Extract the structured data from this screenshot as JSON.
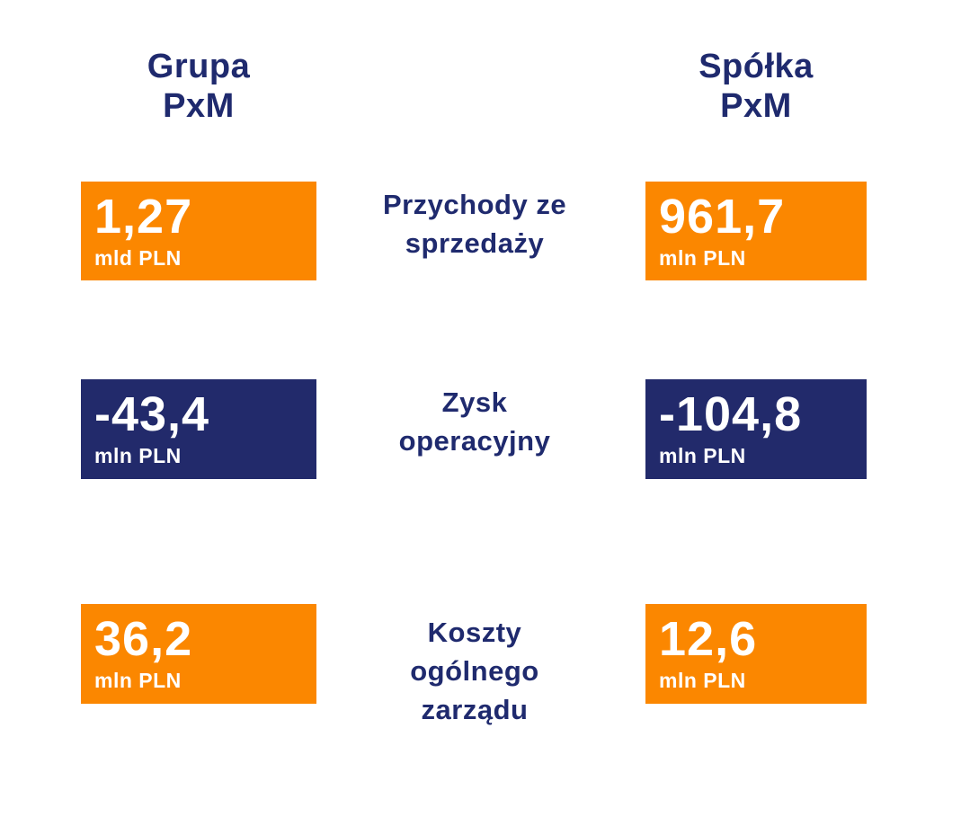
{
  "colors": {
    "orange_tile": "#FB8700",
    "navy_tile": "#222A6B",
    "heading_text": "#1F2A6E",
    "tile_text": "#FFFFFF",
    "background": "#FFFFFF"
  },
  "headers": [
    {
      "id": "grupa-pxm",
      "lines": [
        "Grupa",
        "PxM"
      ]
    },
    {
      "id": "spolka-pxm",
      "lines": [
        "Spółka",
        "PxM"
      ]
    }
  ],
  "rows": [
    {
      "metric_lines": [
        "Przychody ze",
        "sprzedaży"
      ],
      "grupa": {
        "value": "1,27",
        "unit": "mld PLN",
        "tile_color": "#FB8700"
      },
      "spolka": {
        "value": "961,7",
        "unit": "mln PLN",
        "tile_color": "#FB8700"
      }
    },
    {
      "metric_lines": [
        "Zysk",
        "operacyjny"
      ],
      "grupa": {
        "value": "-43,4",
        "unit": "mln PLN",
        "tile_color": "#222A6B"
      },
      "spolka": {
        "value": "-104,8",
        "unit": "mln PLN",
        "tile_color": "#222A6B"
      }
    },
    {
      "metric_lines": [
        "Koszty",
        "ogólnego",
        "zarządu"
      ],
      "grupa": {
        "value": "36,2",
        "unit": "mln PLN",
        "tile_color": "#FB8700"
      },
      "spolka": {
        "value": "12,6",
        "unit": "mln PLN",
        "tile_color": "#FB8700"
      }
    }
  ],
  "chart_data": {
    "type": "table",
    "title": "",
    "categories": [
      "Przychody ze sprzedaży",
      "Zysk operacyjny",
      "Koszty ogólnego zarządu"
    ],
    "series": [
      {
        "name": "Grupa PxM",
        "values_mln_pln": [
          1270,
          -43.4,
          36.2
        ],
        "labels": [
          "1,27 mld PLN",
          "-43,4 mln PLN",
          "36,2 mln PLN"
        ]
      },
      {
        "name": "Spółka PxM",
        "values_mln_pln": [
          961.7,
          -104.8,
          12.6
        ],
        "labels": [
          "961,7 mln PLN",
          "-104,8 mln PLN",
          "12,6 mln PLN"
        ]
      }
    ],
    "positive_tile_color": "#FB8700",
    "negative_tile_color": "#222A6B",
    "legend_position": "column-headers",
    "grid": false
  }
}
